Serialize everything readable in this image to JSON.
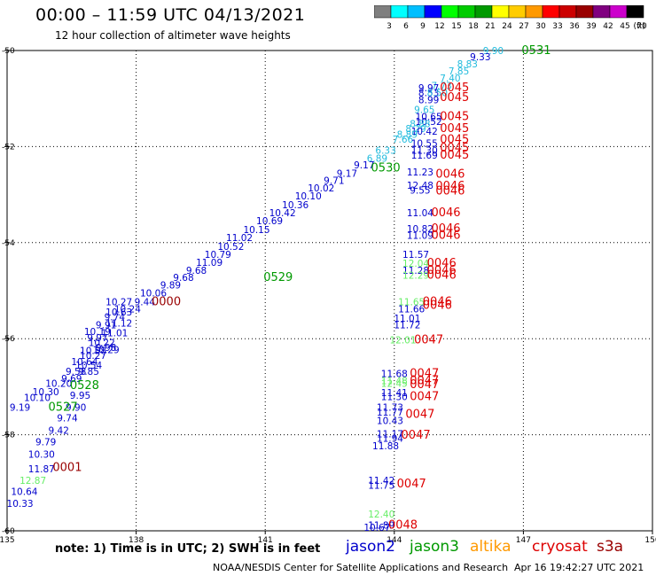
{
  "header": {
    "title": "00:00 – 11:59 UTC 04/13/2021",
    "subtitle": "12 hour collection of altimeter wave heights"
  },
  "colorbar": {
    "unit_label": "(ft)",
    "ticks": [
      "3",
      "6",
      "9",
      "12",
      "15",
      "18",
      "21",
      "24",
      "27",
      "30",
      "33",
      "36",
      "39",
      "42",
      "45",
      "70"
    ],
    "colors": [
      "#7f7f7f",
      "#00ffff",
      "#00bfff",
      "#0000ff",
      "#00ff00",
      "#00cc00",
      "#009900",
      "#ffff00",
      "#ffcc00",
      "#ff9900",
      "#ff0000",
      "#cc0000",
      "#990000",
      "#800080",
      "#cc00cc",
      "#000000"
    ]
  },
  "footer": {
    "note": "note:  1) Time is in UTC;  2) SWH is in feet",
    "legend": [
      "jason2",
      "jason3",
      "altika",
      "cryosat",
      "s3a"
    ],
    "credit": "NOAA/NESDIS Center for Satellite Applications and Research",
    "timestamp": "Apr 16 19:42:27 UTC 2021"
  },
  "colors": {
    "jason2": "#0000cc",
    "jason3": "#009900",
    "jason3_light": "#66ee66",
    "altika": "#ff9900",
    "cryosat": "#dd0000",
    "s3a": "#990000",
    "light_blue": "#3399ee",
    "cyan": "#22bbdd"
  },
  "chart_data": {
    "type": "scatter",
    "xlim": [
      135,
      150
    ],
    "ylim": [
      -60,
      -50
    ],
    "xticks": [
      135,
      138,
      141,
      144,
      147,
      150
    ],
    "yticks": [
      -50,
      -52,
      -54,
      -56,
      -58,
      -60
    ],
    "grid": true,
    "points": [
      {
        "x": 146.3,
        "y": -50.07,
        "label": "9.90",
        "c": "cyan"
      },
      {
        "x": 146.0,
        "y": -50.2,
        "label": "9.33",
        "c": "jason2"
      },
      {
        "x": 145.7,
        "y": -50.35,
        "label": "8.83",
        "c": "cyan"
      },
      {
        "x": 145.5,
        "y": -50.5,
        "label": "7.85",
        "c": "cyan"
      },
      {
        "x": 145.3,
        "y": -50.65,
        "label": "7.40",
        "c": "cyan"
      },
      {
        "x": 145.1,
        "y": -50.8,
        "label": "7.73",
        "c": "cyan"
      },
      {
        "x": 144.8,
        "y": -50.85,
        "label": "9.97",
        "c": "jason2"
      },
      {
        "x": 144.8,
        "y": -50.95,
        "label": "8.53",
        "c": "jason2"
      },
      {
        "x": 145.0,
        "y": -50.95,
        "label": "8.50",
        "c": "cyan"
      },
      {
        "x": 144.8,
        "y": -51.1,
        "label": "8.99",
        "c": "jason2"
      },
      {
        "x": 144.7,
        "y": -51.3,
        "label": "9.65",
        "c": "cyan"
      },
      {
        "x": 144.8,
        "y": -51.45,
        "label": "10.65",
        "c": "jason2"
      },
      {
        "x": 144.8,
        "y": -51.55,
        "label": "10.52",
        "c": "jason2"
      },
      {
        "x": 144.6,
        "y": -51.6,
        "label": "8.88",
        "c": "cyan"
      },
      {
        "x": 144.5,
        "y": -51.7,
        "label": "8.29",
        "c": "cyan"
      },
      {
        "x": 144.7,
        "y": -51.75,
        "label": "10.42",
        "c": "jason2"
      },
      {
        "x": 144.3,
        "y": -51.82,
        "label": "8.89",
        "c": "cyan"
      },
      {
        "x": 144.2,
        "y": -51.92,
        "label": "7.66",
        "c": "cyan"
      },
      {
        "x": 144.7,
        "y": -52.0,
        "label": "10.55",
        "c": "jason2"
      },
      {
        "x": 144.7,
        "y": -52.15,
        "label": "11.30",
        "c": "jason2"
      },
      {
        "x": 143.8,
        "y": -52.15,
        "label": "6.33",
        "c": "cyan"
      },
      {
        "x": 144.7,
        "y": -52.25,
        "label": "11.69",
        "c": "jason2"
      },
      {
        "x": 143.6,
        "y": -52.32,
        "label": "6.89",
        "c": "cyan"
      },
      {
        "x": 143.3,
        "y": -52.45,
        "label": "9.17",
        "c": "jason2"
      },
      {
        "x": 144.6,
        "y": -52.6,
        "label": "11.23",
        "c": "jason2"
      },
      {
        "x": 142.9,
        "y": -52.63,
        "label": "9.17",
        "c": "jason2"
      },
      {
        "x": 142.6,
        "y": -52.78,
        "label": "9.71",
        "c": "jason2"
      },
      {
        "x": 144.6,
        "y": -52.88,
        "label": "12.48",
        "c": "jason2"
      },
      {
        "x": 144.6,
        "y": -52.98,
        "label": "9.55",
        "c": "jason2"
      },
      {
        "x": 142.3,
        "y": -52.93,
        "label": "10.02",
        "c": "jason2"
      },
      {
        "x": 142.0,
        "y": -53.1,
        "label": "10.10",
        "c": "jason2"
      },
      {
        "x": 141.7,
        "y": -53.28,
        "label": "10.36",
        "c": "jason2"
      },
      {
        "x": 141.4,
        "y": -53.45,
        "label": "10.42",
        "c": "jason2"
      },
      {
        "x": 141.1,
        "y": -53.62,
        "label": "10.69",
        "c": "jason2"
      },
      {
        "x": 144.6,
        "y": -53.45,
        "label": "11.04",
        "c": "jason2"
      },
      {
        "x": 140.8,
        "y": -53.8,
        "label": "10.15",
        "c": "jason2"
      },
      {
        "x": 144.6,
        "y": -53.78,
        "label": "10.82",
        "c": "jason2"
      },
      {
        "x": 144.6,
        "y": -53.92,
        "label": "11.09",
        "c": "jason2"
      },
      {
        "x": 140.4,
        "y": -53.97,
        "label": "11.02",
        "c": "jason2"
      },
      {
        "x": 140.2,
        "y": -54.15,
        "label": "10.52",
        "c": "jason2"
      },
      {
        "x": 139.9,
        "y": -54.32,
        "label": "10.79",
        "c": "jason2"
      },
      {
        "x": 144.5,
        "y": -54.32,
        "label": "11.57",
        "c": "jason2"
      },
      {
        "x": 144.5,
        "y": -54.5,
        "label": "12.04",
        "c": "jason3_light"
      },
      {
        "x": 139.7,
        "y": -54.48,
        "label": "11.09",
        "c": "jason2"
      },
      {
        "x": 144.5,
        "y": -54.65,
        "label": "11.28",
        "c": "jason2"
      },
      {
        "x": 144.5,
        "y": -54.75,
        "label": "12.29",
        "c": "jason3_light"
      },
      {
        "x": 139.4,
        "y": -54.65,
        "label": "9.68",
        "c": "jason2"
      },
      {
        "x": 139.1,
        "y": -54.8,
        "label": "9.68",
        "c": "jason2"
      },
      {
        "x": 138.8,
        "y": -54.95,
        "label": "9.89",
        "c": "jason2"
      },
      {
        "x": 138.4,
        "y": -55.12,
        "label": "10.06",
        "c": "jason2"
      },
      {
        "x": 138.2,
        "y": -55.3,
        "label": "9.44",
        "c": "jason2"
      },
      {
        "x": 144.4,
        "y": -55.3,
        "label": "11.65",
        "c": "jason3_light"
      },
      {
        "x": 137.6,
        "y": -55.3,
        "label": "10.27",
        "c": "jason2"
      },
      {
        "x": 137.8,
        "y": -55.45,
        "label": "10.24",
        "c": "jason2"
      },
      {
        "x": 144.4,
        "y": -55.45,
        "label": "11.66",
        "c": "jason2"
      },
      {
        "x": 137.6,
        "y": -55.52,
        "label": "10.63",
        "c": "jason2"
      },
      {
        "x": 137.5,
        "y": -55.62,
        "label": "9.74",
        "c": "jason2"
      },
      {
        "x": 144.3,
        "y": -55.65,
        "label": "11.01",
        "c": "jason2"
      },
      {
        "x": 137.6,
        "y": -55.75,
        "label": "11.12",
        "c": "jason2"
      },
      {
        "x": 144.3,
        "y": -55.78,
        "label": "11.72",
        "c": "jason2"
      },
      {
        "x": 137.3,
        "y": -55.78,
        "label": "9.91",
        "c": "jason2"
      },
      {
        "x": 137.1,
        "y": -55.92,
        "label": "10.19",
        "c": "jason2"
      },
      {
        "x": 137.5,
        "y": -55.95,
        "label": "11.01",
        "c": "jason2"
      },
      {
        "x": 137.1,
        "y": -56.05,
        "label": "9.97",
        "c": "jason2"
      },
      {
        "x": 144.2,
        "y": -56.1,
        "label": "12.01",
        "c": "jason3_light"
      },
      {
        "x": 137.2,
        "y": -56.15,
        "label": "10.22",
        "c": "jason2"
      },
      {
        "x": 137.3,
        "y": -56.25,
        "label": "9.98",
        "c": "jason2"
      },
      {
        "x": 137.3,
        "y": -56.3,
        "label": "10.29",
        "c": "jason2"
      },
      {
        "x": 137.0,
        "y": -56.32,
        "label": "10.58",
        "c": "jason2"
      },
      {
        "x": 137.0,
        "y": -56.42,
        "label": "10.27",
        "c": "jason2"
      },
      {
        "x": 136.8,
        "y": -56.55,
        "label": "10.64",
        "c": "jason2"
      },
      {
        "x": 136.9,
        "y": -56.62,
        "label": "10.54",
        "c": "jason2"
      },
      {
        "x": 136.9,
        "y": -56.75,
        "label": "9.85",
        "c": "jason2"
      },
      {
        "x": 136.6,
        "y": -56.75,
        "label": "9.58",
        "c": "jason2"
      },
      {
        "x": 144.0,
        "y": -56.8,
        "label": "11.68",
        "c": "jason2"
      },
      {
        "x": 136.5,
        "y": -56.9,
        "label": "9.69",
        "c": "jason2"
      },
      {
        "x": 144.0,
        "y": -56.95,
        "label": "11.48",
        "c": "jason3_light"
      },
      {
        "x": 144.0,
        "y": -57.0,
        "label": "12.45",
        "c": "jason3_light"
      },
      {
        "x": 136.2,
        "y": -57.0,
        "label": "10.20",
        "c": "jason2"
      },
      {
        "x": 144.0,
        "y": -57.2,
        "label": "11.41",
        "c": "jason2"
      },
      {
        "x": 144.0,
        "y": -57.28,
        "label": "11.30",
        "c": "jason2"
      },
      {
        "x": 135.9,
        "y": -57.18,
        "label": "10.30",
        "c": "jason2"
      },
      {
        "x": 136.7,
        "y": -57.25,
        "label": "9.95",
        "c": "jason2"
      },
      {
        "x": 135.7,
        "y": -57.3,
        "label": "10.10",
        "c": "jason2"
      },
      {
        "x": 136.6,
        "y": -57.5,
        "label": "9.90",
        "c": "jason2"
      },
      {
        "x": 135.3,
        "y": -57.5,
        "label": "9.19",
        "c": "jason2"
      },
      {
        "x": 143.9,
        "y": -57.5,
        "label": "11.73",
        "c": "jason2"
      },
      {
        "x": 143.9,
        "y": -57.6,
        "label": "11.77",
        "c": "jason2"
      },
      {
        "x": 136.4,
        "y": -57.72,
        "label": "9.74",
        "c": "jason2"
      },
      {
        "x": 143.9,
        "y": -57.78,
        "label": "10.43",
        "c": "jason2"
      },
      {
        "x": 136.2,
        "y": -57.98,
        "label": "9.42",
        "c": "jason2"
      },
      {
        "x": 143.9,
        "y": -58.05,
        "label": "11.17",
        "c": "jason2"
      },
      {
        "x": 143.9,
        "y": -58.15,
        "label": "11.94",
        "c": "jason2"
      },
      {
        "x": 135.9,
        "y": -58.22,
        "label": "9.79",
        "c": "jason2"
      },
      {
        "x": 143.8,
        "y": -58.3,
        "label": "11.88",
        "c": "jason2"
      },
      {
        "x": 135.8,
        "y": -58.48,
        "label": "10.30",
        "c": "jason2"
      },
      {
        "x": 135.8,
        "y": -58.78,
        "label": "11.87",
        "c": "jason2"
      },
      {
        "x": 135.6,
        "y": -59.02,
        "label": "12.87",
        "c": "jason3_light"
      },
      {
        "x": 143.7,
        "y": -59.02,
        "label": "11.42",
        "c": "jason2"
      },
      {
        "x": 143.7,
        "y": -59.12,
        "label": "11.75",
        "c": "jason2"
      },
      {
        "x": 135.4,
        "y": -59.25,
        "label": "10.64",
        "c": "jason2"
      },
      {
        "x": 135.3,
        "y": -59.5,
        "label": "10.33",
        "c": "jason2"
      },
      {
        "x": 143.7,
        "y": -59.72,
        "label": "12.40",
        "c": "jason3_light"
      },
      {
        "x": 143.7,
        "y": -59.95,
        "label": "11.89",
        "c": "jason2"
      },
      {
        "x": 143.6,
        "y": -60.0,
        "label": "10.67",
        "c": "jason2"
      }
    ],
    "time_labels": [
      {
        "x": 147.3,
        "y": -50.07,
        "label": "0531",
        "c": "jason3"
      },
      {
        "x": 145.4,
        "y": -50.85,
        "label": "0045",
        "c": "cryosat"
      },
      {
        "x": 145.4,
        "y": -51.05,
        "label": "0045",
        "c": "cryosat"
      },
      {
        "x": 145.4,
        "y": -51.45,
        "label": "0045",
        "c": "cryosat"
      },
      {
        "x": 145.4,
        "y": -51.7,
        "label": "0045",
        "c": "cryosat"
      },
      {
        "x": 145.4,
        "y": -51.93,
        "label": "0045",
        "c": "cryosat"
      },
      {
        "x": 145.4,
        "y": -52.1,
        "label": "0045",
        "c": "cryosat"
      },
      {
        "x": 145.4,
        "y": -52.25,
        "label": "0045",
        "c": "cryosat"
      },
      {
        "x": 143.8,
        "y": -52.52,
        "label": "0530",
        "c": "jason3"
      },
      {
        "x": 145.3,
        "y": -52.65,
        "label": "0046",
        "c": "cryosat"
      },
      {
        "x": 145.3,
        "y": -52.9,
        "label": "0046",
        "c": "cryosat"
      },
      {
        "x": 145.3,
        "y": -53.0,
        "label": "0046",
        "c": "cryosat"
      },
      {
        "x": 145.2,
        "y": -53.45,
        "label": "0046",
        "c": "cryosat"
      },
      {
        "x": 145.2,
        "y": -53.78,
        "label": "0046",
        "c": "cryosat"
      },
      {
        "x": 145.2,
        "y": -53.92,
        "label": "0046",
        "c": "cryosat"
      },
      {
        "x": 145.1,
        "y": -54.5,
        "label": "0046",
        "c": "cryosat"
      },
      {
        "x": 145.1,
        "y": -54.65,
        "label": "0046",
        "c": "cryosat"
      },
      {
        "x": 145.1,
        "y": -54.75,
        "label": "0046",
        "c": "cryosat"
      },
      {
        "x": 141.3,
        "y": -54.8,
        "label": "0529",
        "c": "jason3"
      },
      {
        "x": 138.7,
        "y": -55.3,
        "label": "0000",
        "c": "s3a"
      },
      {
        "x": 145.0,
        "y": -55.3,
        "label": "0046",
        "c": "cryosat"
      },
      {
        "x": 145.0,
        "y": -55.38,
        "label": "0046",
        "c": "cryosat"
      },
      {
        "x": 144.8,
        "y": -56.1,
        "label": "0047",
        "c": "cryosat"
      },
      {
        "x": 144.7,
        "y": -56.8,
        "label": "0047",
        "c": "cryosat"
      },
      {
        "x": 144.7,
        "y": -56.95,
        "label": "0047",
        "c": "cryosat"
      },
      {
        "x": 144.7,
        "y": -57.03,
        "label": "0047",
        "c": "cryosat"
      },
      {
        "x": 144.7,
        "y": -57.28,
        "label": "0047",
        "c": "cryosat"
      },
      {
        "x": 136.8,
        "y": -57.05,
        "label": "0528",
        "c": "jason3"
      },
      {
        "x": 136.3,
        "y": -57.5,
        "label": "0527",
        "c": "jason3"
      },
      {
        "x": 144.6,
        "y": -57.65,
        "label": "0047",
        "c": "cryosat"
      },
      {
        "x": 144.5,
        "y": -58.08,
        "label": "0047",
        "c": "cryosat"
      },
      {
        "x": 136.4,
        "y": -58.75,
        "label": "0001",
        "c": "s3a"
      },
      {
        "x": 144.4,
        "y": -59.1,
        "label": "0047",
        "c": "cryosat"
      },
      {
        "x": 144.2,
        "y": -59.95,
        "label": "0048",
        "c": "cryosat"
      }
    ]
  }
}
